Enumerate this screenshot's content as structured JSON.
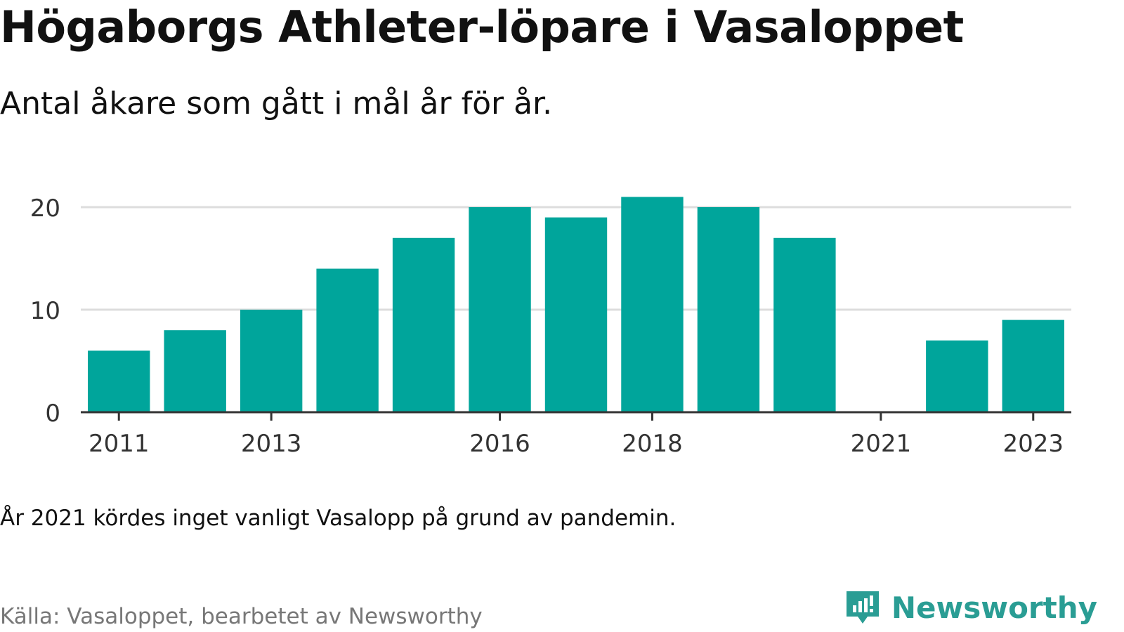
{
  "header": {
    "title": "Högaborgs Athleter-löpare i Vasaloppet",
    "subtitle": "Antal åkare som gått i mål år för år."
  },
  "footer": {
    "note": "År 2021 kördes inget vanligt Vasalopp på grund av pandemin.",
    "source": "Källa: Vasaloppet, bearbetet av Newsworthy",
    "brand": "Newsworthy",
    "brand_icon": "chart-bubble-icon"
  },
  "colors": {
    "bar": "#00a59b",
    "grid": "#dddddd",
    "axis": "#333333",
    "brand": "#2a9d94"
  },
  "chart_data": {
    "type": "bar",
    "categories": [
      "2011",
      "2012",
      "2013",
      "2014",
      "2015",
      "2016",
      "2017",
      "2018",
      "2019",
      "2020",
      "2021",
      "2022",
      "2023"
    ],
    "values": [
      6,
      8,
      10,
      14,
      17,
      20,
      19,
      21,
      20,
      17,
      null,
      7,
      9
    ],
    "x_tick_labels": [
      "2011",
      "2013",
      "2016",
      "2018",
      "2021",
      "2023"
    ],
    "y_ticks": [
      0,
      10,
      20
    ],
    "ylim": [
      0,
      21
    ],
    "grid": true
  }
}
